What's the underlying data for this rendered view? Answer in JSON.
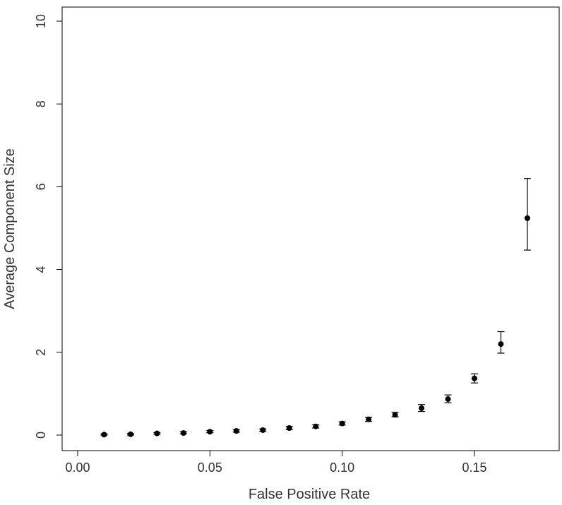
{
  "chart_data": {
    "type": "scatter",
    "title": "",
    "xlabel": "False Positive Rate",
    "ylabel": "Average Component Size",
    "xlim": [
      0.0,
      0.175
    ],
    "ylim": [
      0,
      10
    ],
    "x_ticks": [
      0.0,
      0.05,
      0.1,
      0.15
    ],
    "x_tick_labels": [
      "0.00",
      "0.05",
      "0.10",
      "0.15"
    ],
    "y_ticks": [
      0,
      2,
      4,
      6,
      8,
      10
    ],
    "y_tick_labels": [
      "0",
      "2",
      "4",
      "6",
      "8",
      "10"
    ],
    "grid": false,
    "series": [
      {
        "points": [
          {
            "x": 0.01,
            "y": 0.01,
            "err_low": 0.0,
            "err_high": 0.03
          },
          {
            "x": 0.02,
            "y": 0.02,
            "err_low": 0.0,
            "err_high": 0.04
          },
          {
            "x": 0.03,
            "y": 0.04,
            "err_low": 0.02,
            "err_high": 0.06
          },
          {
            "x": 0.04,
            "y": 0.05,
            "err_low": 0.03,
            "err_high": 0.08
          },
          {
            "x": 0.05,
            "y": 0.08,
            "err_low": 0.06,
            "err_high": 0.11
          },
          {
            "x": 0.06,
            "y": 0.1,
            "err_low": 0.07,
            "err_high": 0.13
          },
          {
            "x": 0.07,
            "y": 0.12,
            "err_low": 0.09,
            "err_high": 0.15
          },
          {
            "x": 0.08,
            "y": 0.17,
            "err_low": 0.13,
            "err_high": 0.21
          },
          {
            "x": 0.09,
            "y": 0.21,
            "err_low": 0.17,
            "err_high": 0.25
          },
          {
            "x": 0.1,
            "y": 0.28,
            "err_low": 0.24,
            "err_high": 0.32
          },
          {
            "x": 0.11,
            "y": 0.38,
            "err_low": 0.33,
            "err_high": 0.43
          },
          {
            "x": 0.12,
            "y": 0.49,
            "err_low": 0.44,
            "err_high": 0.55
          },
          {
            "x": 0.13,
            "y": 0.65,
            "err_low": 0.57,
            "err_high": 0.74
          },
          {
            "x": 0.14,
            "y": 0.87,
            "err_low": 0.78,
            "err_high": 0.97
          },
          {
            "x": 0.15,
            "y": 1.37,
            "err_low": 1.26,
            "err_high": 1.48
          },
          {
            "x": 0.16,
            "y": 2.2,
            "err_low": 1.98,
            "err_high": 2.5
          },
          {
            "x": 0.17,
            "y": 5.24,
            "err_low": 4.47,
            "err_high": 6.2
          }
        ]
      }
    ]
  }
}
